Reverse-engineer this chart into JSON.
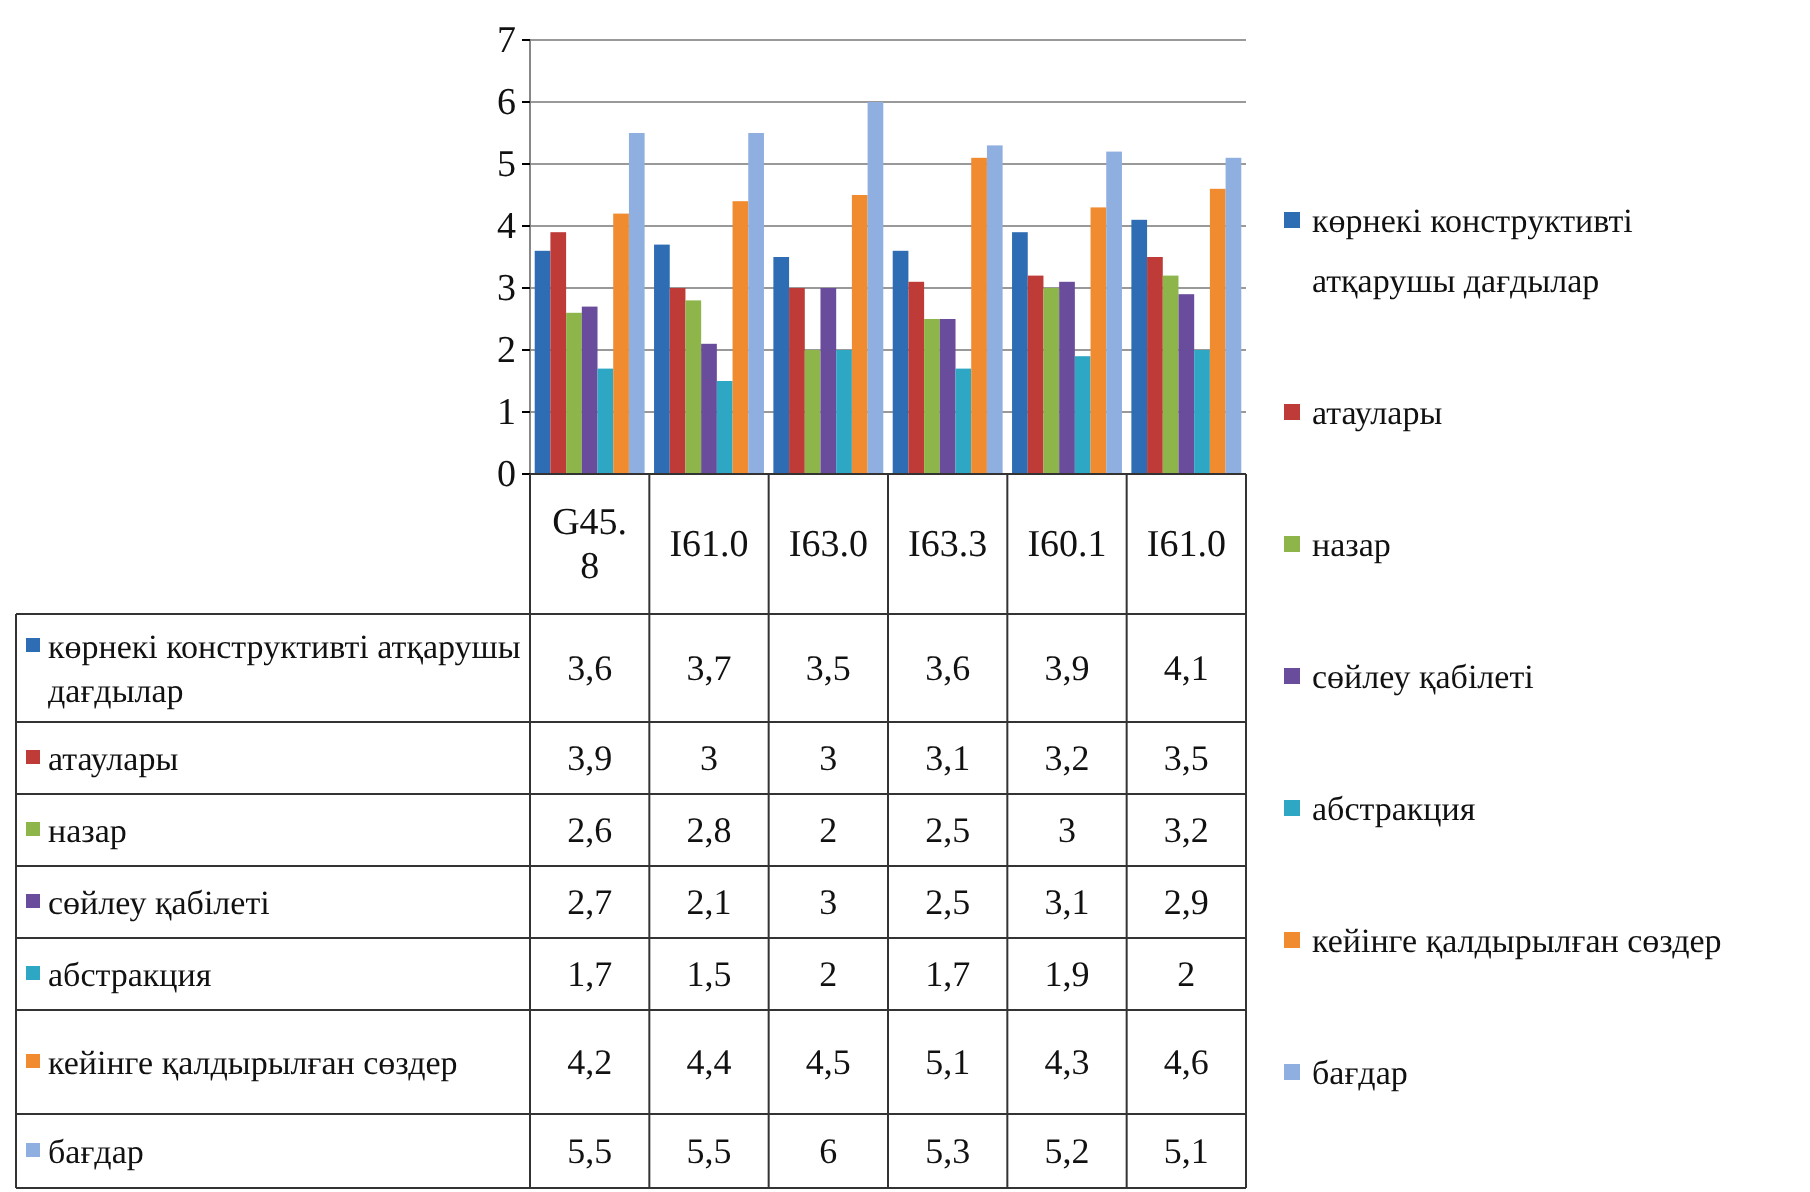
{
  "chart_data": {
    "type": "bar",
    "categories": [
      "G45.8",
      "I61.0",
      "I63.0",
      "I63.3",
      "I60.1",
      "I61.0"
    ],
    "ylim": [
      0,
      7
    ],
    "yticks": [
      0,
      1,
      2,
      3,
      4,
      5,
      6,
      7
    ],
    "grid": "y",
    "legend": "right",
    "series": [
      {
        "name": "көрнекі конструктивті атқарушы дағдылар",
        "color": "#2e6db4",
        "values": [
          3.6,
          3.7,
          3.5,
          3.6,
          3.9,
          4.1
        ],
        "value_labels": [
          "3,6",
          "3,7",
          "3,5",
          "3,6",
          "3,9",
          "4,1"
        ]
      },
      {
        "name": "атаулары",
        "color": "#bf3b37",
        "values": [
          3.9,
          3,
          3,
          3.1,
          3.2,
          3.5
        ],
        "value_labels": [
          "3,9",
          "3",
          "3",
          "3,1",
          "3,2",
          "3,5"
        ]
      },
      {
        "name": "назар",
        "color": "#8db54a",
        "values": [
          2.6,
          2.8,
          2,
          2.5,
          3,
          3.2
        ],
        "value_labels": [
          "2,6",
          "2,8",
          "2",
          "2,5",
          "3",
          "3,2"
        ]
      },
      {
        "name": "сөйлеу қабілеті",
        "color": "#6a4c9c",
        "values": [
          2.7,
          2.1,
          3,
          2.5,
          3.1,
          2.9
        ],
        "value_labels": [
          "2,7",
          "2,1",
          "3",
          "2,5",
          "3,1",
          "2,9"
        ]
      },
      {
        "name": "абстракция",
        "color": "#2ea7c5",
        "values": [
          1.7,
          1.5,
          2,
          1.7,
          1.9,
          2
        ],
        "value_labels": [
          "1,7",
          "1,5",
          "2",
          "1,7",
          "1,9",
          "2"
        ]
      },
      {
        "name": "кейінге қалдырылған сөздер",
        "color": "#f08b30",
        "values": [
          4.2,
          4.4,
          4.5,
          5.1,
          4.3,
          4.6
        ],
        "value_labels": [
          "4,2",
          "4,4",
          "4,5",
          "5,1",
          "4,3",
          "4,6"
        ]
      },
      {
        "name": "бағдар",
        "color": "#8fafe0",
        "values": [
          5.5,
          5.5,
          6,
          5.3,
          5.2,
          5.1
        ],
        "value_labels": [
          "5,5",
          "5,5",
          "6",
          "5,3",
          "5,2",
          "5,1"
        ]
      }
    ]
  }
}
